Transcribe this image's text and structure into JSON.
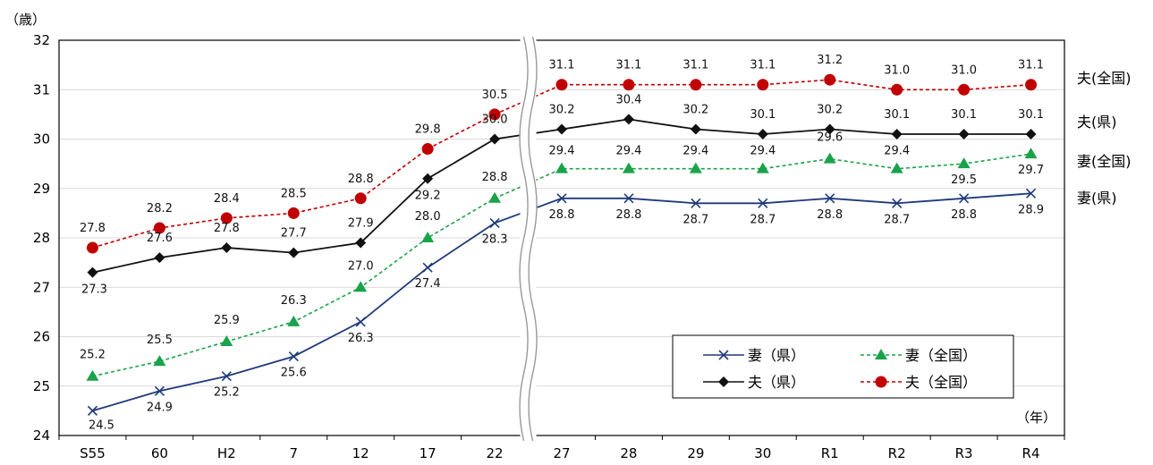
{
  "chart_data": {
    "type": "line",
    "y_unit_label": "（歳）",
    "x_unit_label": "（年）",
    "ylim": [
      24,
      32
    ],
    "yticks": [
      "24",
      "25",
      "26",
      "27",
      "28",
      "29",
      "30",
      "31",
      "32"
    ],
    "categories": [
      "S55",
      "60",
      "H2",
      "7",
      "12",
      "17",
      "22",
      "27",
      "28",
      "29",
      "30",
      "R1",
      "R2",
      "R3",
      "R4"
    ],
    "axis_break_after": "22",
    "grid": true,
    "legend_position": "bottom-right",
    "series": [
      {
        "name": "妻（県）",
        "side_label": "妻(県)",
        "color": "#1f3a7a",
        "line_style": "solid",
        "marker": "x",
        "values": [
          24.5,
          24.9,
          25.2,
          25.6,
          26.3,
          27.4,
          28.3,
          28.8,
          28.8,
          28.7,
          28.7,
          28.8,
          28.7,
          28.8,
          28.9
        ]
      },
      {
        "name": "妻（全国）",
        "side_label": "妻(全国)",
        "color": "#1aa34a",
        "line_style": "dashed",
        "marker": "triangle",
        "values": [
          25.2,
          25.5,
          25.9,
          26.3,
          27.0,
          28.0,
          28.8,
          29.4,
          29.4,
          29.4,
          29.4,
          29.6,
          29.4,
          29.5,
          29.7
        ]
      },
      {
        "name": "夫（県）",
        "side_label": "夫(県)",
        "color": "#111111",
        "line_style": "solid",
        "marker": "diamond",
        "values": [
          27.3,
          27.6,
          27.8,
          27.7,
          27.9,
          29.2,
          30.0,
          30.2,
          30.4,
          30.2,
          30.1,
          30.2,
          30.1,
          30.1,
          30.1
        ]
      },
      {
        "name": "夫（全国）",
        "side_label": "夫(全国)",
        "color": "#c00000",
        "line_style": "dashed",
        "marker": "circle",
        "values": [
          27.8,
          28.2,
          28.4,
          28.5,
          28.8,
          29.8,
          30.5,
          31.1,
          31.1,
          31.1,
          31.1,
          31.2,
          31.0,
          31.0,
          31.1
        ]
      }
    ],
    "side_label_order": [
      "夫(全国)",
      "夫(県)",
      "妻(全国)",
      "妻(県)"
    ],
    "legend_order": [
      "妻（県）",
      "妻（全国）",
      "夫（県）",
      "夫（全国）"
    ]
  }
}
